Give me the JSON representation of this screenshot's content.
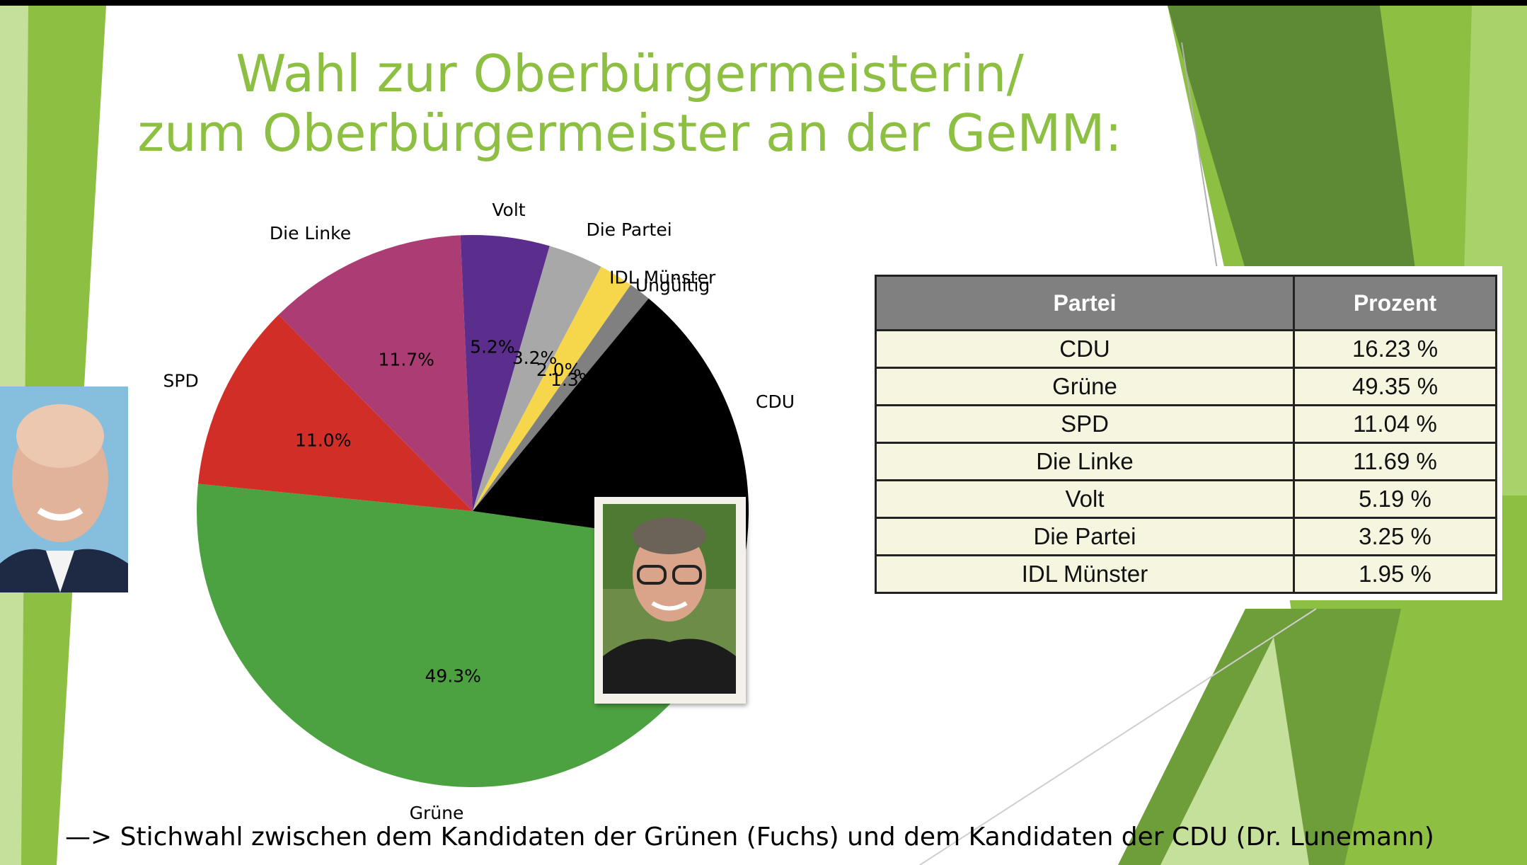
{
  "slide": {
    "title_line1": "Wahl zur Oberbürgermeisterin/",
    "title_line2": "zum Oberbürgermeister an der GeMM:",
    "footnote": "—> Stichwahl zwischen dem Kandidaten der Grünen (Fuchs) und dem Kandidaten der CDU (Dr. Lunemann)"
  },
  "colors": {
    "title": "#8cbf42",
    "accent_dark_green": "#5e8a35",
    "accent_green": "#8cbf42",
    "accent_light_green": "#c5e09a"
  },
  "chart_data": {
    "type": "pie",
    "title": "",
    "slices": [
      {
        "label": "Grüne",
        "value": 49.3,
        "pct_label": "49.3%",
        "color": "#4ca140"
      },
      {
        "label": "SPD",
        "value": 11.0,
        "pct_label": "11.0%",
        "color": "#d12e27"
      },
      {
        "label": "Die Linke",
        "value": 11.7,
        "pct_label": "11.7%",
        "color": "#ac3d74"
      },
      {
        "label": "Volt",
        "value": 5.2,
        "pct_label": "5.2%",
        "color": "#5b2d8c"
      },
      {
        "label": "Die Partei",
        "value": 3.2,
        "pct_label": "3.2%",
        "color": "#a8a8a8"
      },
      {
        "label": "IDL Münster",
        "value": 2.0,
        "pct_label": "2.0%",
        "color": "#f6d64a"
      },
      {
        "label": "Ungültig",
        "value": 1.3,
        "pct_label": "1.3%",
        "color": "#808080"
      },
      {
        "label": "CDU",
        "value": 16.2,
        "pct_label": "16.2%",
        "color": "#000000"
      }
    ],
    "start_angle_deg": 8,
    "direction": "clockwise-from-east"
  },
  "results_table": {
    "headers": [
      "Partei",
      "Prozent"
    ],
    "rows": [
      [
        "CDU",
        "16.23 %"
      ],
      [
        "Grüne",
        "49.35 %"
      ],
      [
        "SPD",
        "11.04 %"
      ],
      [
        "Die Linke",
        "11.69 %"
      ],
      [
        "Volt",
        "5.19 %"
      ],
      [
        "Die Partei",
        "3.25 %"
      ],
      [
        "IDL Münster",
        "1.95 %"
      ]
    ]
  }
}
